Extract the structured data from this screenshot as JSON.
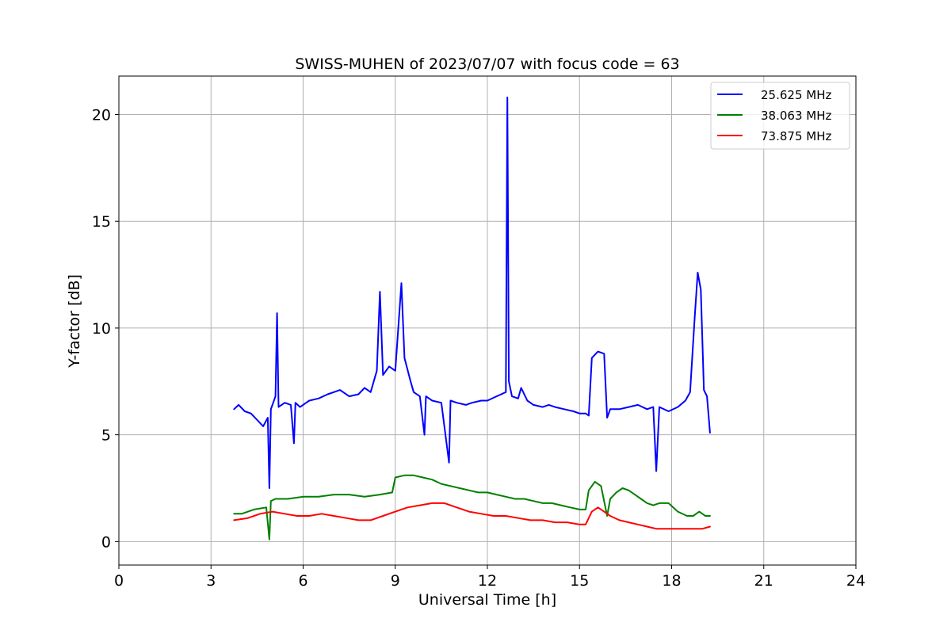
{
  "chart_data": {
    "type": "line",
    "title": "SWISS-MUHEN of 2023/07/07 with focus code = 63",
    "xlabel": "Universal Time [h]",
    "ylabel": "Y-factor [dB]",
    "xlim": [
      0,
      24
    ],
    "ylim": [
      -1.1,
      21.8
    ],
    "xticks": [
      0,
      3,
      6,
      9,
      12,
      15,
      18,
      21,
      24
    ],
    "yticks": [
      0,
      5,
      10,
      15,
      20
    ],
    "grid": true,
    "legend_position": "top-right",
    "series": [
      {
        "name": "25.625 MHz",
        "color": "#0000ff",
        "x": [
          3.75,
          3.9,
          4.1,
          4.3,
          4.5,
          4.7,
          4.85,
          4.9,
          4.95,
          5.0,
          5.1,
          5.15,
          5.2,
          5.4,
          5.6,
          5.7,
          5.75,
          5.9,
          6.2,
          6.5,
          6.8,
          7.0,
          7.2,
          7.5,
          7.8,
          8.0,
          8.2,
          8.4,
          8.5,
          8.6,
          8.8,
          9.0,
          9.2,
          9.3,
          9.5,
          9.6,
          9.8,
          9.95,
          10.0,
          10.2,
          10.5,
          10.75,
          10.8,
          11.0,
          11.3,
          11.5,
          11.8,
          12.0,
          12.3,
          12.6,
          12.65,
          12.7,
          12.8,
          13.0,
          13.1,
          13.3,
          13.5,
          13.8,
          14.0,
          14.2,
          14.5,
          14.8,
          15.0,
          15.2,
          15.3,
          15.4,
          15.6,
          15.8,
          15.9,
          16.0,
          16.3,
          16.6,
          16.9,
          17.2,
          17.4,
          17.5,
          17.6,
          17.9,
          18.2,
          18.45,
          18.6,
          18.75,
          18.85,
          18.95,
          19.05,
          19.15,
          19.25
        ],
        "values": [
          6.2,
          6.4,
          6.1,
          6.0,
          5.7,
          5.4,
          5.8,
          2.5,
          6.2,
          6.4,
          6.8,
          10.7,
          6.3,
          6.5,
          6.4,
          4.6,
          6.5,
          6.3,
          6.6,
          6.7,
          6.9,
          7.0,
          7.1,
          6.8,
          6.9,
          7.2,
          7.0,
          8.0,
          11.7,
          7.8,
          8.2,
          8.0,
          12.1,
          8.6,
          7.5,
          7.0,
          6.8,
          5.0,
          6.8,
          6.6,
          6.5,
          3.7,
          6.6,
          6.5,
          6.4,
          6.5,
          6.6,
          6.6,
          6.8,
          7.0,
          20.8,
          7.5,
          6.8,
          6.7,
          7.2,
          6.6,
          6.4,
          6.3,
          6.4,
          6.3,
          6.2,
          6.1,
          6.0,
          6.0,
          5.9,
          8.6,
          8.9,
          8.8,
          5.8,
          6.2,
          6.2,
          6.3,
          6.4,
          6.2,
          6.3,
          3.3,
          6.3,
          6.1,
          6.3,
          6.6,
          7.0,
          10.5,
          12.6,
          11.8,
          7.1,
          6.8,
          5.1
        ]
      },
      {
        "name": "38.063 MHz",
        "color": "#008000",
        "x": [
          3.75,
          4.0,
          4.4,
          4.8,
          4.9,
          4.95,
          5.1,
          5.5,
          6.0,
          6.5,
          7.0,
          7.5,
          8.0,
          8.5,
          8.9,
          9.0,
          9.3,
          9.6,
          9.9,
          10.2,
          10.5,
          10.8,
          11.1,
          11.4,
          11.7,
          12.0,
          12.3,
          12.6,
          12.9,
          13.2,
          13.5,
          13.8,
          14.1,
          14.4,
          14.7,
          15.0,
          15.2,
          15.3,
          15.5,
          15.7,
          15.9,
          16.0,
          16.2,
          16.4,
          16.6,
          16.8,
          17.0,
          17.2,
          17.4,
          17.6,
          17.9,
          18.2,
          18.5,
          18.7,
          18.9,
          19.1,
          19.25
        ],
        "values": [
          1.3,
          1.3,
          1.5,
          1.6,
          0.1,
          1.9,
          2.0,
          2.0,
          2.1,
          2.1,
          2.2,
          2.2,
          2.1,
          2.2,
          2.3,
          3.0,
          3.1,
          3.1,
          3.0,
          2.9,
          2.7,
          2.6,
          2.5,
          2.4,
          2.3,
          2.3,
          2.2,
          2.1,
          2.0,
          2.0,
          1.9,
          1.8,
          1.8,
          1.7,
          1.6,
          1.5,
          1.5,
          2.4,
          2.8,
          2.6,
          1.2,
          2.0,
          2.3,
          2.5,
          2.4,
          2.2,
          2.0,
          1.8,
          1.7,
          1.8,
          1.8,
          1.4,
          1.2,
          1.2,
          1.4,
          1.2,
          1.2
        ]
      },
      {
        "name": "73.875 MHz",
        "color": "#ff0000",
        "x": [
          3.75,
          4.2,
          4.6,
          5.0,
          5.4,
          5.8,
          6.2,
          6.6,
          7.0,
          7.4,
          7.8,
          8.2,
          8.6,
          9.0,
          9.4,
          9.8,
          10.2,
          10.6,
          11.0,
          11.4,
          11.8,
          12.2,
          12.6,
          13.0,
          13.4,
          13.8,
          14.2,
          14.6,
          15.0,
          15.2,
          15.4,
          15.6,
          15.8,
          16.0,
          16.3,
          16.6,
          16.9,
          17.2,
          17.5,
          17.8,
          18.1,
          18.4,
          18.7,
          19.0,
          19.25
        ],
        "values": [
          1.0,
          1.1,
          1.3,
          1.4,
          1.3,
          1.2,
          1.2,
          1.3,
          1.2,
          1.1,
          1.0,
          1.0,
          1.2,
          1.4,
          1.6,
          1.7,
          1.8,
          1.8,
          1.6,
          1.4,
          1.3,
          1.2,
          1.2,
          1.1,
          1.0,
          1.0,
          0.9,
          0.9,
          0.8,
          0.8,
          1.4,
          1.6,
          1.4,
          1.2,
          1.0,
          0.9,
          0.8,
          0.7,
          0.6,
          0.6,
          0.6,
          0.6,
          0.6,
          0.6,
          0.7
        ]
      }
    ]
  }
}
